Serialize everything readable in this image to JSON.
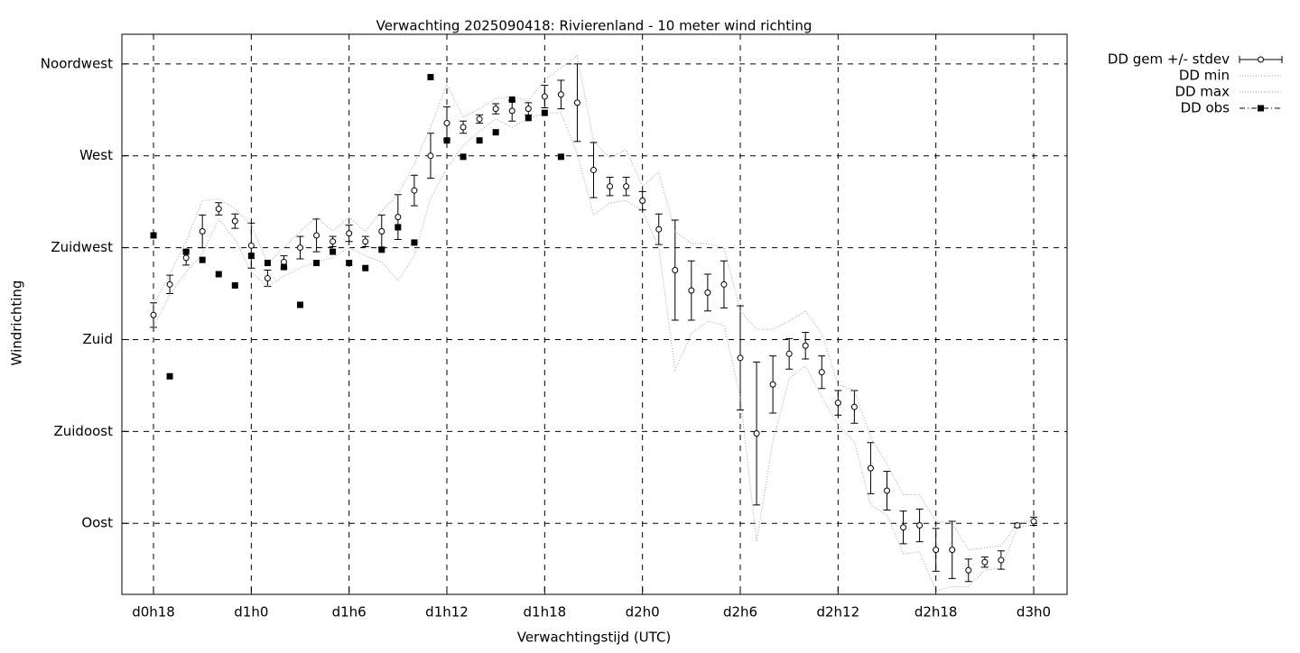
{
  "chart_data": {
    "type": "line",
    "title": "Verwachting 2025090418: Rivierenland - 10 meter wind richting",
    "x_label": "Verwachtingstijd (UTC)",
    "y_label": "Windrichting",
    "x": [
      18,
      19,
      20,
      21,
      22,
      23,
      24,
      25,
      26,
      27,
      28,
      29,
      30,
      31,
      32,
      33,
      34,
      35,
      36,
      37,
      38,
      39,
      40,
      41,
      42,
      43,
      44,
      45,
      46,
      47,
      48,
      49,
      50,
      51,
      52,
      53,
      54,
      55,
      56,
      57,
      58,
      59,
      60,
      61,
      62,
      63,
      64,
      65,
      66,
      67,
      68,
      69,
      70,
      71,
      72
    ],
    "series": [
      {
        "name": "DD gem +/- stdev",
        "style": "errorbars",
        "color": "#000000",
        "values": [
          192,
          207,
          220,
          233,
          244,
          238,
          226,
          210,
          218,
          225,
          231,
          228,
          232,
          228,
          233,
          240,
          253,
          270,
          286,
          284,
          288,
          293,
          292,
          293,
          299,
          300,
          296,
          263,
          255,
          255,
          248,
          234,
          214,
          204,
          203,
          207,
          171,
          134,
          158,
          173,
          177,
          164,
          149,
          147,
          117,
          106,
          88,
          89,
          77,
          77,
          67,
          71,
          72,
          89,
          91
        ],
        "errors": [
          6,
          4.5,
          3.5,
          8,
          3,
          3.5,
          11,
          4,
          3,
          5.5,
          8,
          2.5,
          4,
          2.5,
          8,
          11,
          7.5,
          11,
          8,
          3,
          2,
          2.5,
          5,
          3,
          5.5,
          7,
          19,
          13.5,
          4.5,
          4.5,
          4.5,
          7.5,
          24.5,
          14.5,
          9,
          11.5,
          25.5,
          35,
          14,
          7.5,
          6.5,
          8,
          6,
          8,
          12.5,
          9.5,
          8,
          8,
          10.5,
          14,
          5.5,
          2.5,
          4.5,
          1,
          2
        ]
      },
      {
        "name": "DD min",
        "style": "dotted",
        "color": "#a0a0a0",
        "values": [
          186,
          202,
          213,
          222,
          239,
          229,
          213,
          206,
          211,
          215,
          218,
          220,
          225,
          221,
          218,
          209,
          221,
          249,
          264,
          275,
          282,
          288,
          284,
          288,
          291,
          291,
          271,
          241,
          247,
          248,
          243,
          225,
          165,
          183,
          189,
          187,
          152,
          81,
          130,
          161,
          167,
          152,
          138,
          130,
          99,
          94,
          75,
          76,
          57,
          59,
          59,
          67,
          68,
          88,
          89
        ]
      },
      {
        "name": "DD max",
        "style": "dotted",
        "color": "#a0a0a0",
        "values": [
          197,
          212,
          228,
          248,
          249,
          244,
          236,
          217,
          225,
          233,
          240,
          233,
          240,
          233,
          243,
          251,
          266,
          284,
          305,
          289,
          293,
          298,
          299,
          297,
          307,
          313,
          319,
          277,
          269,
          273,
          255,
          262,
          233,
          227,
          227,
          225,
          194,
          185,
          185,
          189,
          194,
          183,
          158,
          155,
          132,
          119,
          104,
          104,
          91,
          90,
          77,
          78,
          79,
          90,
          92
        ]
      },
      {
        "name": "DD obs",
        "style": "points",
        "color": "#000000",
        "values": [
          231,
          162,
          223,
          219,
          212,
          206.5,
          221,
          217.5,
          215.5,
          197,
          217.5,
          223,
          217.5,
          215,
          224,
          235,
          227.5,
          308.5,
          277.5,
          269.5,
          277.5,
          281.5,
          297.5,
          288.5,
          291,
          269.5,
          null,
          null,
          null,
          null,
          null,
          null,
          null,
          null,
          null,
          null,
          null,
          null,
          null,
          null,
          null,
          null,
          null,
          null,
          null,
          null,
          null,
          null,
          null,
          null,
          null,
          null,
          null,
          null,
          null
        ]
      }
    ],
    "xlim": [
      16.06,
      74.05
    ],
    "ylim": [
      55.2,
      329.5
    ],
    "xticks": [
      {
        "value": 18,
        "label": "d0h18"
      },
      {
        "value": 24,
        "label": "d1h0"
      },
      {
        "value": 30,
        "label": "d1h6"
      },
      {
        "value": 36,
        "label": "d1h12"
      },
      {
        "value": 42,
        "label": "d1h18"
      },
      {
        "value": 48,
        "label": "d2h0"
      },
      {
        "value": 54,
        "label": "d2h6"
      },
      {
        "value": 60,
        "label": "d2h12"
      },
      {
        "value": 66,
        "label": "d2h18"
      },
      {
        "value": 72,
        "label": "d3h0"
      }
    ],
    "yticks": [
      {
        "value": 90,
        "label": "Oost"
      },
      {
        "value": 135,
        "label": "Zuidoost"
      },
      {
        "value": 180,
        "label": "Zuid"
      },
      {
        "value": 225,
        "label": "Zuidwest"
      },
      {
        "value": 270,
        "label": "West"
      },
      {
        "value": 315,
        "label": "Noordwest"
      }
    ],
    "grid": true,
    "legend": "top-right-outside"
  }
}
